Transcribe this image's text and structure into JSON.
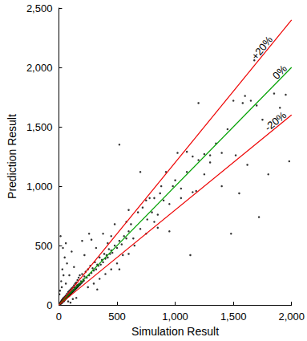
{
  "chart_data": {
    "type": "scatter",
    "x_label": "Simulation Result",
    "y_label": "Prediction Result",
    "xlim": [
      0,
      2000
    ],
    "xticks": [
      0,
      500,
      1000,
      1500,
      2000
    ],
    "ylim": [
      0,
      2500
    ],
    "yticks": [
      0,
      500,
      1000,
      1500,
      2000,
      2500
    ],
    "grid": false,
    "series": [
      {
        "type": "scatter",
        "color": "#000000",
        "marker": "circle",
        "x": [
          5,
          10,
          12,
          15,
          18,
          20,
          22,
          25,
          28,
          30,
          32,
          35,
          38,
          40,
          42,
          45,
          48,
          50,
          52,
          55,
          58,
          60,
          62,
          65,
          68,
          70,
          72,
          75,
          78,
          80,
          82,
          85,
          88,
          90,
          92,
          95,
          98,
          100,
          102,
          105,
          108,
          110,
          112,
          115,
          118,
          120,
          122,
          125,
          128,
          130,
          132,
          135,
          138,
          140,
          142,
          145,
          148,
          150,
          152,
          155,
          158,
          160,
          162,
          165,
          168,
          170,
          172,
          175,
          178,
          180,
          185,
          190,
          195,
          200,
          205,
          210,
          215,
          10,
          20,
          30,
          15,
          40,
          50,
          60,
          70,
          25,
          80,
          100,
          120,
          150,
          90,
          130,
          110,
          60,
          35,
          5,
          220,
          230,
          240,
          250,
          260,
          270,
          280,
          290,
          300,
          310,
          320,
          330,
          340,
          350,
          360,
          370,
          380,
          390,
          400,
          410,
          420,
          430,
          440,
          450,
          460,
          480,
          500,
          520,
          540,
          560,
          580,
          600,
          220,
          250,
          280,
          300,
          320,
          350,
          380,
          400,
          420,
          450,
          480,
          500,
          260,
          330,
          200,
          450,
          550,
          600,
          520,
          580,
          650,
          620,
          700,
          680,
          720,
          750,
          760,
          800,
          820,
          850,
          870,
          900,
          920,
          950,
          980,
          1000,
          1020,
          1050,
          1100,
          1150,
          1180,
          1200,
          1250,
          1300,
          1350,
          1400,
          1450,
          1500,
          1520,
          1580,
          1620,
          1700,
          1750,
          1800,
          1850,
          1900,
          1950,
          1980,
          1550,
          1680,
          1480,
          1130,
          1600,
          1200,
          1300,
          1720,
          850,
          950,
          1050,
          1150,
          700,
          520,
          1100,
          1650,
          1400,
          1250,
          780,
          880,
          600,
          640,
          750,
          820
        ],
        "values": [
          8,
          15,
          6,
          20,
          30,
          12,
          25,
          40,
          18,
          35,
          50,
          28,
          45,
          60,
          30,
          55,
          38,
          70,
          45,
          62,
          50,
          80,
          55,
          75,
          60,
          95,
          65,
          85,
          70,
          110,
          78,
          90,
          75,
          120,
          85,
          100,
          88,
          130,
          95,
          110,
          100,
          140,
          105,
          120,
          110,
          150,
          115,
          130,
          120,
          165,
          125,
          145,
          130,
          180,
          135,
          150,
          140,
          190,
          145,
          165,
          150,
          210,
          155,
          170,
          160,
          230,
          165,
          180,
          170,
          250,
          175,
          200,
          185,
          260,
          195,
          215,
          205,
          120,
          200,
          300,
          580,
          250,
          400,
          180,
          350,
          150,
          30,
          20,
          50,
          60,
          250,
          320,
          450,
          520,
          480,
          90,
          240,
          280,
          230,
          300,
          250,
          330,
          270,
          310,
          290,
          360,
          300,
          340,
          330,
          400,
          340,
          380,
          360,
          430,
          390,
          420,
          400,
          470,
          430,
          460,
          440,
          500,
          480,
          540,
          510,
          580,
          560,
          620,
          420,
          150,
          550,
          180,
          480,
          220,
          600,
          260,
          520,
          300,
          680,
          350,
          600,
          130,
          540,
          580,
          420,
          430,
          300,
          700,
          500,
          680,
          640,
          780,
          820,
          600,
          720,
          780,
          900,
          760,
          940,
          880,
          1120,
          850,
          1000,
          1050,
          1280,
          980,
          1120,
          1250,
          960,
          1220,
          1270,
          1200,
          1360,
          1280,
          1480,
          1720,
          1260,
          1700,
          1180,
          1680,
          1560,
          1100,
          1780,
          1660,
          1770,
          1210,
          940,
          2060,
          600,
          420,
          1760,
          1700,
          1260,
          740,
          650,
          620,
          900,
          950,
          1120,
          1350,
          1290,
          1720,
          1000,
          1100,
          900,
          1000,
          800,
          560,
          880,
          700
        ]
      },
      {
        "name": "+20%",
        "type": "line",
        "color": "#ee0000",
        "x": [
          0,
          2000
        ],
        "values": [
          0,
          2400
        ]
      },
      {
        "name": "0%",
        "type": "line",
        "color": "#00a000",
        "x": [
          0,
          2000
        ],
        "values": [
          0,
          2000
        ]
      },
      {
        "name": "-20%",
        "type": "line",
        "color": "#ee0000",
        "x": [
          0,
          2000
        ],
        "values": [
          0,
          1600
        ]
      }
    ]
  }
}
